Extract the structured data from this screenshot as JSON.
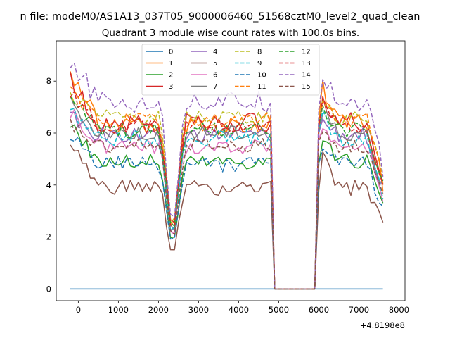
{
  "figure": {
    "suptitle": "n file: modeM0/AS1A13_037T05_9000006460_51568cztM0_level2_quad_clean",
    "x_offset_label": "+4.8198e8"
  },
  "chart_data": {
    "type": "line",
    "title": "Quadrant 3 module wise count rates with 100.0s bins.",
    "xlabel": "",
    "ylabel": "",
    "xlim": [
      -550,
      8150
    ],
    "ylim": [
      -0.45,
      9.55
    ],
    "x_ticks": [
      0,
      1000,
      2000,
      3000,
      4000,
      5000,
      6000,
      7000,
      8000
    ],
    "y_ticks": [
      0,
      2,
      4,
      6,
      8
    ],
    "x_offset": 481980000,
    "grid": false,
    "legend": {
      "placement": "top-center",
      "columns": 4
    },
    "series": [
      {
        "name": "0",
        "color": "#1f77b4",
        "dash": "solid",
        "base": 0,
        "spread": 0,
        "peak": 0
      },
      {
        "name": "1",
        "color": "#ff7f0e",
        "dash": "solid",
        "base": 6.3,
        "spread": 0.4,
        "peak": 8.4
      },
      {
        "name": "2",
        "color": "#2ca02c",
        "dash": "solid",
        "base": 4.9,
        "spread": 0.3,
        "peak": 6.4
      },
      {
        "name": "3",
        "color": "#d62728",
        "dash": "solid",
        "base": 6.4,
        "spread": 0.4,
        "peak": 8.0
      },
      {
        "name": "4",
        "color": "#9467bd",
        "dash": "solid",
        "base": 5.9,
        "spread": 0.3,
        "peak": 6.7
      },
      {
        "name": "5",
        "color": "#8c564b",
        "dash": "solid",
        "base": 3.9,
        "spread": 0.3,
        "peak": 5.6
      },
      {
        "name": "6",
        "color": "#e377c2",
        "dash": "solid",
        "base": 5.5,
        "spread": 0.3,
        "peak": 6.8
      },
      {
        "name": "7",
        "color": "#7f7f7f",
        "dash": "solid",
        "base": 6.0,
        "spread": 0.3,
        "peak": 7.2
      },
      {
        "name": "8",
        "color": "#bcbd22",
        "dash": "dashed",
        "base": 6.6,
        "spread": 0.3,
        "peak": 7.5
      },
      {
        "name": "9",
        "color": "#17becf",
        "dash": "dashed",
        "base": 5.8,
        "spread": 0.3,
        "peak": 7.0
      },
      {
        "name": "10",
        "color": "#1f77b4",
        "dash": "dashed",
        "base": 4.8,
        "spread": 0.3,
        "peak": 6.0
      },
      {
        "name": "11",
        "color": "#ff7f0e",
        "dash": "dashed",
        "base": 6.5,
        "spread": 0.3,
        "peak": 7.6
      },
      {
        "name": "12",
        "color": "#2ca02c",
        "dash": "dashed",
        "base": 6.1,
        "spread": 0.3,
        "peak": 7.4
      },
      {
        "name": "13",
        "color": "#d62728",
        "dash": "dashed",
        "base": 6.3,
        "spread": 0.3,
        "peak": 7.5
      },
      {
        "name": "14",
        "color": "#9467bd",
        "dash": "dashed",
        "base": 7.2,
        "spread": 0.4,
        "peak": 8.9
      },
      {
        "name": "15",
        "color": "#8c564b",
        "dash": "dashed",
        "base": 5.5,
        "spread": 0.3,
        "peak": 6.4
      }
    ],
    "segments": {
      "x_start": -200,
      "x_end": 7650,
      "step": 100,
      "dip_center": 2350,
      "dip_min_fraction": 0.28,
      "gap_start": 4900,
      "gap_end": 5950
    }
  }
}
